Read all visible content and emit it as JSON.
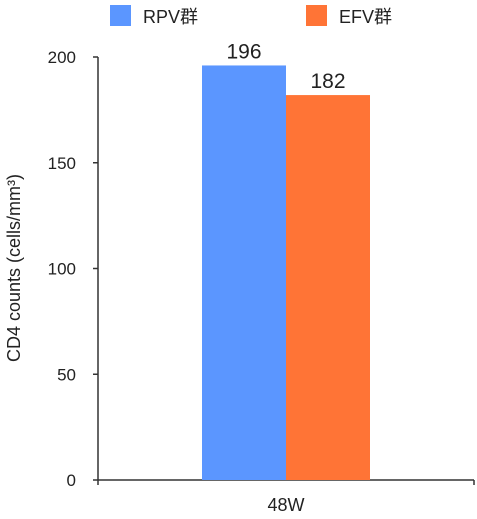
{
  "chart_data": {
    "type": "bar",
    "categories": [
      "48W"
    ],
    "series": [
      {
        "name": "RPV群",
        "values": [
          196
        ],
        "color": "#5B96FF"
      },
      {
        "name": "EFV群",
        "values": [
          182
        ],
        "color": "#FF7436"
      }
    ],
    "title": "",
    "xlabel": "",
    "ylabel": "CD4 counts (cells/mm³)",
    "ylim": [
      0,
      200
    ],
    "yticks": [
      0,
      50,
      100,
      150,
      200
    ],
    "grid": false,
    "legend_position": "top"
  }
}
